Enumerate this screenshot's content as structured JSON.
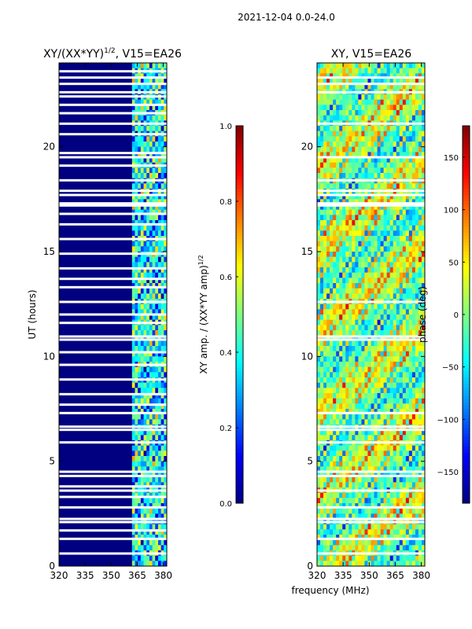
{
  "suptitle": "2021-12-04 0.0-24.0",
  "chart_data": [
    {
      "type": "heatmap",
      "title": "XY/(XX*YY)",
      "title_superscript": "1/2",
      "title_suffix": ", V15=EA26",
      "xlabel": "",
      "ylabel": "UT (hours)",
      "xlim": [
        320,
        382
      ],
      "ylim": [
        0,
        24
      ],
      "xticks": [
        320,
        335,
        350,
        365,
        380
      ],
      "yticks": [
        0,
        5,
        10,
        15,
        20
      ],
      "colorbar": {
        "label": "XY amp. / (XX*YY amp)",
        "label_superscript": "1/2",
        "vmin": 0.0,
        "vmax": 1.0,
        "ticks": [
          "0.0",
          "0.2",
          "0.4",
          "0.6",
          "0.8",
          "1.0"
        ],
        "tick_values": [
          0.0,
          0.2,
          0.4,
          0.6,
          0.8,
          1.0
        ],
        "colormap": "jet"
      },
      "active_band_mhz": [
        362,
        382
      ],
      "background_value": 0.0,
      "typical_band_values": [
        0.25,
        0.45,
        0.3,
        0.55,
        0.35,
        0.5,
        0.2,
        0.4
      ],
      "flagged_ut_hours": [
        0.6,
        1.3,
        1.7,
        2.1,
        2.25,
        2.8,
        3.3,
        3.6,
        3.8,
        4.3,
        4.5,
        5.9,
        6.5,
        6.65,
        7.3,
        7.7,
        8.2,
        8.9,
        9.6,
        10.2,
        10.8,
        10.95,
        11.6,
        12.0,
        12.6,
        13.3,
        13.7,
        14.2,
        14.9,
        15.6,
        16.3,
        16.8,
        17.2,
        17.3,
        17.7,
        17.9,
        18.4,
        19.1,
        19.5,
        19.7,
        20.6,
        21.1,
        21.6,
        22.0,
        22.4,
        22.6,
        23.0,
        23.3,
        23.6
      ]
    },
    {
      "type": "heatmap",
      "title": "XY, V15=EA26",
      "xlabel": "frequency (MHz)",
      "ylabel": "",
      "xlim": [
        320,
        382
      ],
      "ylim": [
        0,
        24
      ],
      "xticks": [
        320,
        335,
        350,
        365,
        380
      ],
      "yticks": [
        0,
        5,
        10,
        15,
        20
      ],
      "colorbar": {
        "label": "phase (deg)",
        "vmin": -180,
        "vmax": 180,
        "ticks": [
          "−150",
          "−100",
          "−50",
          "0",
          "50",
          "100",
          "150"
        ],
        "tick_values": [
          -150,
          -100,
          -50,
          0,
          50,
          100,
          150
        ],
        "colormap": "jet"
      },
      "typical_phase_deg": [
        -60,
        -20,
        0,
        30,
        80,
        -120,
        150
      ],
      "flagged_ut_hours": [
        0.6,
        1.3,
        2.1,
        2.25,
        2.8,
        3.6,
        4.3,
        4.5,
        5.9,
        6.5,
        6.65,
        7.3,
        10.8,
        10.95,
        12.6,
        17.2,
        17.3,
        17.7,
        17.9,
        18.4,
        19.5,
        21.1,
        22.6,
        23.0,
        23.3
      ]
    }
  ]
}
